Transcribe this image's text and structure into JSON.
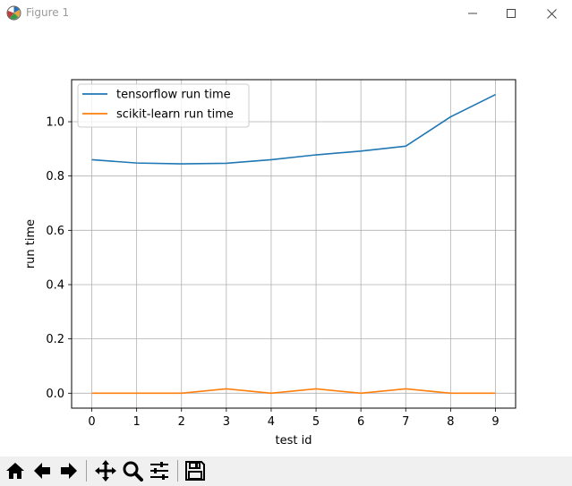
{
  "window": {
    "title": "Figure 1"
  },
  "icons": {
    "app": "matplotlib-figure-icon",
    "minimize": "minimize-icon",
    "maximize": "maximize-icon",
    "close": "close-icon"
  },
  "toolbar": {
    "buttons": [
      {
        "icon": "home-icon",
        "name": "home-button"
      },
      {
        "icon": "back-arrow-icon",
        "name": "back-button"
      },
      {
        "icon": "forward-arrow-icon",
        "name": "forward-button"
      },
      {
        "icon": "pan-icon",
        "name": "pan-button"
      },
      {
        "icon": "zoom-icon",
        "name": "zoom-button"
      },
      {
        "icon": "subplots-icon",
        "name": "configure-subplots-button"
      },
      {
        "icon": "save-icon",
        "name": "save-button"
      }
    ]
  },
  "colors": {
    "series0": "#1f77b4",
    "series1": "#ff7f0e",
    "grid": "#b0b0b0",
    "toolbar_bg": "#f0f0f0"
  },
  "chart_data": {
    "type": "line",
    "title": "",
    "xlabel": "test id",
    "ylabel": "run time",
    "x": [
      0,
      1,
      2,
      3,
      4,
      5,
      6,
      7,
      8,
      9
    ],
    "xticks": [
      "0",
      "1",
      "2",
      "3",
      "4",
      "5",
      "6",
      "7",
      "8",
      "9"
    ],
    "yticks": [
      "0.0",
      "0.2",
      "0.4",
      "0.6",
      "0.8",
      "1.0"
    ],
    "xlim": [
      -0.45,
      9.45
    ],
    "ylim": [
      -0.055,
      1.155
    ],
    "grid": true,
    "legend_position": "top-left",
    "series": [
      {
        "name": "tensorflow run time",
        "color": "#1f77b4",
        "values": [
          0.86,
          0.848,
          0.845,
          0.847,
          0.86,
          0.878,
          0.892,
          0.91,
          1.018,
          1.1
        ]
      },
      {
        "name": "scikit-learn run time",
        "color": "#ff7f0e",
        "values": [
          0.0,
          0.0,
          0.0,
          0.016,
          0.0,
          0.016,
          0.0,
          0.016,
          0.0,
          0.0
        ]
      }
    ]
  }
}
